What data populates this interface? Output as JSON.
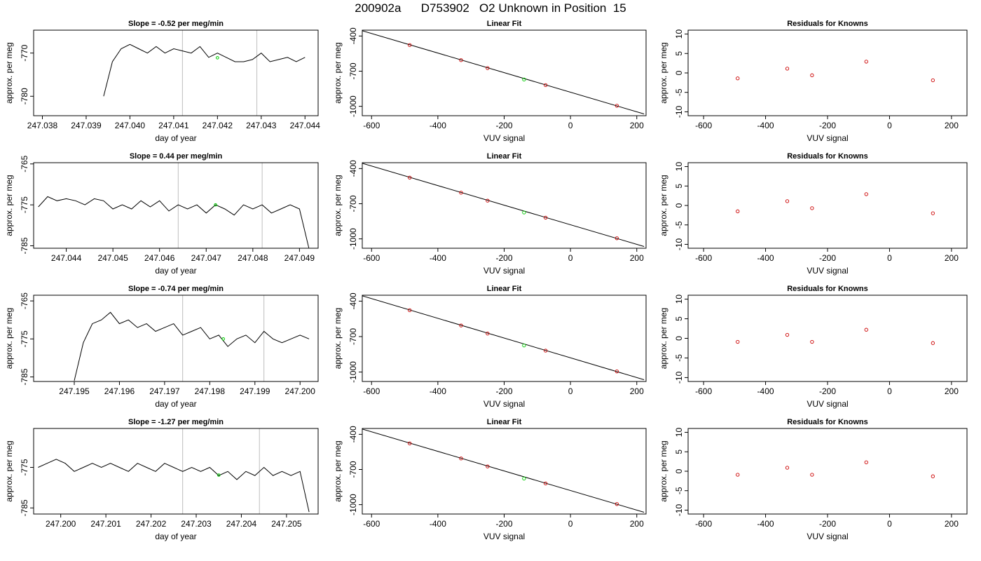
{
  "page_title": "200902a      D753902   O2 Unknown in Position  15",
  "chart_data": [
    {
      "type": "line",
      "title": "Slope =  -0.52  per meg/min",
      "xlabel": "day of year",
      "ylabel": "approx. per meg",
      "xlim": [
        247.0378,
        247.0443
      ],
      "ylim": [
        -784.5,
        -764.7
      ],
      "xticks": [
        "247.038",
        "247.039",
        "247.040",
        "247.041",
        "247.042",
        "247.043",
        "247.044"
      ],
      "yticks": [
        "-780",
        "-770"
      ],
      "vlines": [
        247.0412,
        247.0429
      ],
      "highlight": {
        "x": 247.042,
        "y": -771.1
      },
      "series": [
        {
          "x": [
            247.0394,
            247.0396,
            247.0398,
            247.04,
            247.0402,
            247.0404,
            247.0406,
            247.0408,
            247.041,
            247.0412,
            247.0414,
            247.0416,
            247.0418,
            247.042,
            247.0422,
            247.0424,
            247.0426,
            247.0428,
            247.043,
            247.0432,
            247.0434,
            247.0436,
            247.0438,
            247.044
          ],
          "values": [
            -780,
            -772,
            -769,
            -768,
            -769,
            -770,
            -768.5,
            -770,
            -769,
            -769.5,
            -770,
            -768.5,
            -771,
            -770,
            -771,
            -772,
            -772,
            -771.5,
            -770,
            -772,
            -771.5,
            -771,
            -772,
            -771
          ]
        }
      ]
    },
    {
      "type": "scatter",
      "title": "Linear Fit",
      "xlabel": "VUV signal",
      "ylabel": "approx. per meg",
      "xlim": [
        -628,
        228
      ],
      "ylim": [
        -1080,
        -350
      ],
      "xticks": [
        -600,
        -400,
        -200,
        0,
        200
      ],
      "yticks": [
        -400,
        -700,
        -1000
      ],
      "fit_line": {
        "x": [
          -628,
          222
        ],
        "y": [
          -355,
          -1065
        ]
      },
      "knowns": {
        "x": [
          -485,
          -330,
          -250,
          -75,
          140
        ],
        "y": [
          -477,
          -606,
          -674,
          -819,
          -995
        ]
      },
      "unknown": {
        "x": -140,
        "y": -771
      }
    },
    {
      "type": "scatter",
      "title": "Residuals for Knowns",
      "xlabel": "VUV signal",
      "ylabel": "approx. per meg",
      "xlim": [
        -650,
        250
      ],
      "ylim": [
        -11,
        11
      ],
      "xticks": [
        -600,
        -400,
        -200,
        0,
        200
      ],
      "yticks": [
        -10,
        -5,
        0,
        5,
        10
      ],
      "points": {
        "x": [
          -490,
          -330,
          -250,
          -75,
          140
        ],
        "y": [
          -1.4,
          1.1,
          -0.6,
          2.9,
          -1.9
        ]
      }
    },
    {
      "type": "line",
      "title": "Slope =  0.44  per meg/min",
      "xlabel": "day of year",
      "ylabel": "approx. per meg",
      "xlim": [
        247.0433,
        247.0494
      ],
      "ylim": [
        -785.6,
        -764.7
      ],
      "xticks": [
        "247.044",
        "247.045",
        "247.046",
        "247.047",
        "247.048",
        "247.049"
      ],
      "yticks": [
        "-785",
        "-775",
        "-765"
      ],
      "vlines": [
        247.0464,
        247.0482
      ],
      "highlight": {
        "x": 247.0472,
        "y": -775.0
      },
      "series": [
        {
          "x": [
            247.0434,
            247.0436,
            247.0438,
            247.044,
            247.0442,
            247.0444,
            247.0446,
            247.0448,
            247.045,
            247.0452,
            247.0454,
            247.0456,
            247.0458,
            247.046,
            247.0462,
            247.0464,
            247.0466,
            247.0468,
            247.047,
            247.0472,
            247.0474,
            247.0476,
            247.0478,
            247.048,
            247.0482,
            247.0484,
            247.0486,
            247.0488,
            247.049,
            247.0492
          ],
          "values": [
            -775.5,
            -773,
            -774,
            -773.5,
            -774,
            -775,
            -773.5,
            -774,
            -776,
            -775,
            -776,
            -774,
            -775.5,
            -774,
            -776.5,
            -775,
            -776,
            -775,
            -777,
            -775,
            -776,
            -777.5,
            -775,
            -776,
            -775,
            -777,
            -776,
            -775,
            -776,
            -785.5
          ]
        }
      ]
    },
    {
      "type": "scatter",
      "title": "Linear Fit",
      "xlabel": "VUV signal",
      "ylabel": "approx. per meg",
      "xlim": [
        -628,
        228
      ],
      "ylim": [
        -1080,
        -350
      ],
      "xticks": [
        -600,
        -400,
        -200,
        0,
        200
      ],
      "yticks": [
        -400,
        -700,
        -1000
      ],
      "fit_line": {
        "x": [
          -628,
          222
        ],
        "y": [
          -355,
          -1065
        ]
      },
      "knowns": {
        "x": [
          -485,
          -330,
          -250,
          -75,
          140
        ],
        "y": [
          -477,
          -606,
          -674,
          -819,
          -995
        ]
      },
      "unknown": {
        "x": -140,
        "y": -775
      }
    },
    {
      "type": "scatter",
      "title": "Residuals for Knowns",
      "xlabel": "VUV signal",
      "ylabel": "approx. per meg",
      "xlim": [
        -650,
        250
      ],
      "ylim": [
        -11,
        11
      ],
      "xticks": [
        -600,
        -400,
        -200,
        0,
        200
      ],
      "yticks": [
        -10,
        -5,
        0,
        5,
        10
      ],
      "points": {
        "x": [
          -490,
          -330,
          -250,
          -75,
          140
        ],
        "y": [
          -1.5,
          1.1,
          -0.7,
          2.9,
          -2.0
        ]
      }
    },
    {
      "type": "line",
      "title": "Slope =  -0.74  per meg/min",
      "xlabel": "day of year",
      "ylabel": "approx. per meg",
      "xlim": [
        247.1941,
        247.2004
      ],
      "ylim": [
        -786.2,
        -763.5
      ],
      "xticks": [
        "247.195",
        "247.196",
        "247.197",
        "247.198",
        "247.199",
        "247.200"
      ],
      "yticks": [
        "-785",
        "-775",
        "-765"
      ],
      "vlines": [
        247.1974,
        247.1992
      ],
      "highlight": {
        "x": 247.1983,
        "y": -775.0
      },
      "series": [
        {
          "x": [
            247.195,
            247.1952,
            247.1954,
            247.1956,
            247.1958,
            247.196,
            247.1962,
            247.1964,
            247.1966,
            247.1968,
            247.197,
            247.1972,
            247.1974,
            247.1976,
            247.1978,
            247.198,
            247.1982,
            247.1984,
            247.1986,
            247.1988,
            247.199,
            247.1992,
            247.1994,
            247.1996,
            247.1998,
            247.2,
            247.2002
          ],
          "values": [
            -786,
            -776,
            -771,
            -770,
            -768,
            -771,
            -770,
            -772,
            -771,
            -773,
            -772,
            -771,
            -774,
            -773,
            -772,
            -775,
            -774,
            -777,
            -775,
            -774,
            -776,
            -773,
            -775,
            -776,
            -775,
            -774,
            -775
          ]
        }
      ]
    },
    {
      "type": "scatter",
      "title": "Linear Fit",
      "xlabel": "VUV signal",
      "ylabel": "approx. per meg",
      "xlim": [
        -628,
        228
      ],
      "ylim": [
        -1080,
        -350
      ],
      "xticks": [
        -600,
        -400,
        -200,
        0,
        200
      ],
      "yticks": [
        -400,
        -700,
        -1000
      ],
      "fit_line": {
        "x": [
          -628,
          222
        ],
        "y": [
          -355,
          -1065
        ]
      },
      "knowns": {
        "x": [
          -485,
          -330,
          -250,
          -75,
          140
        ],
        "y": [
          -477,
          -606,
          -674,
          -819,
          -995
        ]
      },
      "unknown": {
        "x": -140,
        "y": -775
      }
    },
    {
      "type": "scatter",
      "title": "Residuals for Knowns",
      "xlabel": "VUV signal",
      "ylabel": "approx. per meg",
      "xlim": [
        -650,
        250
      ],
      "ylim": [
        -11,
        11
      ],
      "xticks": [
        -600,
        -400,
        -200,
        0,
        200
      ],
      "yticks": [
        -10,
        -5,
        0,
        5,
        10
      ],
      "points": {
        "x": [
          -490,
          -330,
          -250,
          -75,
          140
        ],
        "y": [
          -0.9,
          0.9,
          -0.9,
          2.2,
          -1.2
        ]
      }
    },
    {
      "type": "line",
      "title": "Slope =  -1.27  per meg/min",
      "xlabel": "day of year",
      "ylabel": "approx. per meg",
      "xlim": [
        247.1994,
        247.2057
      ],
      "ylim": [
        -786.5,
        -765.4
      ],
      "xticks": [
        "247.200",
        "247.201",
        "247.202",
        "247.203",
        "247.204",
        "247.205"
      ],
      "yticks": [
        "-785",
        "-775"
      ],
      "vlines": [
        247.2027,
        247.2044
      ],
      "highlight": {
        "x": 247.2035,
        "y": -776.9
      },
      "series": [
        {
          "x": [
            247.1995,
            247.1997,
            247.1999,
            247.2001,
            247.2003,
            247.2005,
            247.2007,
            247.2009,
            247.2011,
            247.2013,
            247.2015,
            247.2017,
            247.2019,
            247.2021,
            247.2023,
            247.2025,
            247.2027,
            247.2029,
            247.2031,
            247.2033,
            247.2035,
            247.2037,
            247.2039,
            247.2041,
            247.2043,
            247.2045,
            247.2047,
            247.2049,
            247.2051,
            247.2053,
            247.2055
          ],
          "values": [
            -775,
            -774,
            -773,
            -774,
            -776,
            -775,
            -774,
            -775,
            -774,
            -775,
            -776,
            -774,
            -775,
            -776,
            -774,
            -775,
            -776,
            -775,
            -776,
            -775,
            -777,
            -776,
            -778,
            -776,
            -777,
            -775,
            -777,
            -776,
            -777,
            -776,
            -786
          ]
        }
      ]
    },
    {
      "type": "scatter",
      "title": "Linear Fit",
      "xlabel": "VUV signal",
      "ylabel": "approx. per meg",
      "xlim": [
        -628,
        228
      ],
      "ylim": [
        -1080,
        -350
      ],
      "xticks": [
        -600,
        -400,
        -200,
        0,
        200
      ],
      "yticks": [
        -400,
        -700,
        -1000
      ],
      "fit_line": {
        "x": [
          -628,
          222
        ],
        "y": [
          -355,
          -1065
        ]
      },
      "knowns": {
        "x": [
          -485,
          -330,
          -250,
          -75,
          140
        ],
        "y": [
          -477,
          -606,
          -674,
          -819,
          -995
        ]
      },
      "unknown": {
        "x": -140,
        "y": -777
      }
    },
    {
      "type": "scatter",
      "title": "Residuals for Knowns",
      "xlabel": "VUV signal",
      "ylabel": "approx. per meg",
      "xlim": [
        -650,
        250
      ],
      "ylim": [
        -11,
        11
      ],
      "xticks": [
        -600,
        -400,
        -200,
        0,
        200
      ],
      "yticks": [
        -10,
        -5,
        0,
        5,
        10
      ],
      "points": {
        "x": [
          -490,
          -330,
          -250,
          -75,
          140
        ],
        "y": [
          -0.9,
          0.9,
          -0.9,
          2.3,
          -1.3
        ]
      }
    }
  ],
  "colors": {
    "line": "#000000",
    "vline": "#bebebe",
    "known_point": "#cc0000",
    "unknown_point": "#00cc00",
    "fit_line": "#000000"
  }
}
